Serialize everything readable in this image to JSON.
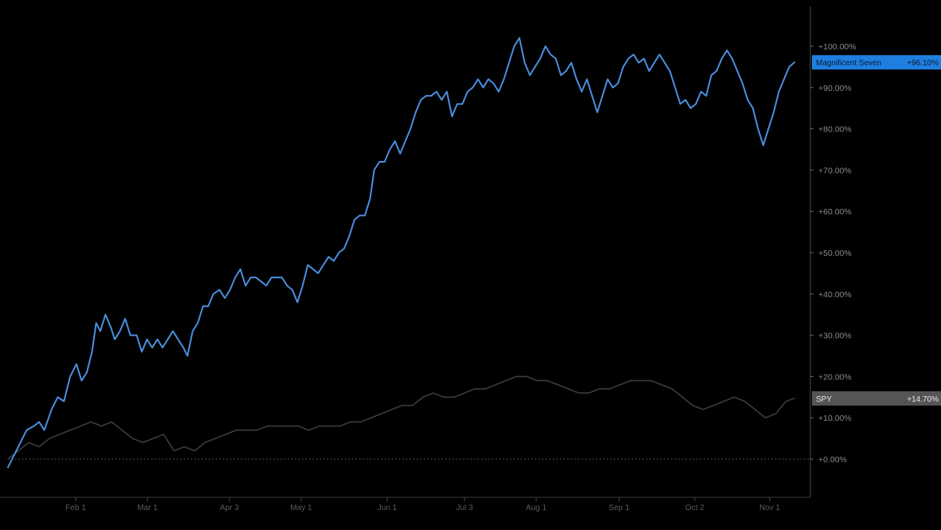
{
  "chart_data": {
    "type": "line",
    "title": "",
    "xlabel": "",
    "ylabel": "",
    "ylim": [
      -10,
      110
    ],
    "y_ticks": [
      "+0.00%",
      "+10.00%",
      "+20.00%",
      "+30.00%",
      "+40.00%",
      "+50.00%",
      "+60.00%",
      "+70.00%",
      "+80.00%",
      "+90.00%",
      "+100.00%"
    ],
    "x_ticks": [
      "Feb 1",
      "Mar 1",
      "Apr 3",
      "May 1",
      "Jun 1",
      "Jul 3",
      "Aug 1",
      "Sep 1",
      "Oct 2",
      "Nov 1"
    ],
    "grid": false,
    "zero_line": "dotted",
    "series": [
      {
        "name": "Magnificent Seven",
        "color": "#4a8fe0",
        "last_value_label": "+96.10%",
        "points": [
          [
            0.0,
            -2
          ],
          [
            0.6,
            1
          ],
          [
            1.2,
            4
          ],
          [
            1.8,
            7
          ],
          [
            2.5,
            8
          ],
          [
            3.0,
            9
          ],
          [
            3.5,
            7
          ],
          [
            4.2,
            12
          ],
          [
            4.8,
            15
          ],
          [
            5.4,
            14
          ],
          [
            6.0,
            20
          ],
          [
            6.6,
            23
          ],
          [
            7.1,
            19
          ],
          [
            7.6,
            21
          ],
          [
            8.1,
            26
          ],
          [
            8.5,
            33
          ],
          [
            8.9,
            31
          ],
          [
            9.4,
            35
          ],
          [
            9.9,
            32
          ],
          [
            10.3,
            29
          ],
          [
            10.8,
            31
          ],
          [
            11.3,
            34
          ],
          [
            11.8,
            30
          ],
          [
            12.4,
            30
          ],
          [
            12.9,
            26
          ],
          [
            13.4,
            29
          ],
          [
            13.9,
            27
          ],
          [
            14.4,
            29
          ],
          [
            14.9,
            27
          ],
          [
            15.4,
            29
          ],
          [
            15.9,
            31
          ],
          [
            16.4,
            29
          ],
          [
            16.9,
            27
          ],
          [
            17.3,
            25
          ],
          [
            17.8,
            31
          ],
          [
            18.3,
            33
          ],
          [
            18.8,
            37
          ],
          [
            19.3,
            37
          ],
          [
            19.8,
            40
          ],
          [
            20.4,
            41
          ],
          [
            20.9,
            39
          ],
          [
            21.4,
            41
          ],
          [
            21.9,
            44
          ],
          [
            22.4,
            46
          ],
          [
            22.9,
            42
          ],
          [
            23.4,
            44
          ],
          [
            23.9,
            44
          ],
          [
            24.4,
            43
          ],
          [
            24.9,
            42
          ],
          [
            25.4,
            44
          ],
          [
            25.9,
            44
          ],
          [
            26.4,
            44
          ],
          [
            26.9,
            42
          ],
          [
            27.4,
            41
          ],
          [
            27.9,
            38
          ],
          [
            28.4,
            42
          ],
          [
            28.9,
            47
          ],
          [
            29.4,
            46
          ],
          [
            29.9,
            45
          ],
          [
            30.4,
            47
          ],
          [
            30.9,
            49
          ],
          [
            31.4,
            48
          ],
          [
            31.9,
            50
          ],
          [
            32.4,
            51
          ],
          [
            32.9,
            54
          ],
          [
            33.4,
            58
          ],
          [
            33.9,
            59
          ],
          [
            34.4,
            59
          ],
          [
            34.9,
            63
          ],
          [
            35.3,
            70
          ],
          [
            35.8,
            72
          ],
          [
            36.3,
            72
          ],
          [
            36.8,
            75
          ],
          [
            37.3,
            77
          ],
          [
            37.8,
            74
          ],
          [
            38.3,
            77
          ],
          [
            38.8,
            80
          ],
          [
            39.3,
            84
          ],
          [
            39.8,
            87
          ],
          [
            40.3,
            88
          ],
          [
            40.8,
            88
          ],
          [
            41.3,
            89
          ],
          [
            41.8,
            87
          ],
          [
            42.3,
            89
          ],
          [
            42.8,
            83
          ],
          [
            43.3,
            86
          ],
          [
            43.8,
            86
          ],
          [
            44.3,
            89
          ],
          [
            44.8,
            90
          ],
          [
            45.3,
            92
          ],
          [
            45.8,
            90
          ],
          [
            46.3,
            92
          ],
          [
            46.8,
            91
          ],
          [
            47.3,
            89
          ],
          [
            47.8,
            92
          ],
          [
            48.3,
            96
          ],
          [
            48.8,
            100
          ],
          [
            49.3,
            102
          ],
          [
            49.8,
            96
          ],
          [
            50.3,
            93
          ],
          [
            50.8,
            95
          ],
          [
            51.3,
            97
          ],
          [
            51.8,
            100
          ],
          [
            52.3,
            98
          ],
          [
            52.8,
            97
          ],
          [
            53.3,
            93
          ],
          [
            53.8,
            94
          ],
          [
            54.3,
            96
          ],
          [
            54.8,
            92
          ],
          [
            55.3,
            89
          ],
          [
            55.8,
            92
          ],
          [
            56.3,
            88
          ],
          [
            56.8,
            84
          ],
          [
            57.3,
            88
          ],
          [
            57.8,
            92
          ],
          [
            58.3,
            90
          ],
          [
            58.8,
            91
          ],
          [
            59.3,
            95
          ],
          [
            59.8,
            97
          ],
          [
            60.3,
            98
          ],
          [
            60.8,
            96
          ],
          [
            61.3,
            97
          ],
          [
            61.8,
            94
          ],
          [
            62.3,
            96
          ],
          [
            62.8,
            98
          ],
          [
            63.3,
            96
          ],
          [
            63.8,
            94
          ],
          [
            64.3,
            90
          ],
          [
            64.8,
            86
          ],
          [
            65.3,
            87
          ],
          [
            65.8,
            85
          ],
          [
            66.3,
            86
          ],
          [
            66.8,
            89
          ],
          [
            67.3,
            88
          ],
          [
            67.8,
            93
          ],
          [
            68.3,
            94
          ],
          [
            68.8,
            97
          ],
          [
            69.3,
            99
          ],
          [
            69.8,
            97
          ],
          [
            70.3,
            94
          ],
          [
            70.8,
            91
          ],
          [
            71.3,
            87
          ],
          [
            71.8,
            85
          ],
          [
            72.3,
            80
          ],
          [
            72.8,
            76
          ],
          [
            73.3,
            80
          ],
          [
            73.8,
            84
          ],
          [
            74.3,
            89
          ],
          [
            74.8,
            92
          ],
          [
            75.3,
            95
          ],
          [
            75.8,
            96.1
          ]
        ]
      },
      {
        "name": "SPY",
        "color": "#3c3c3c",
        "last_value_label": "+14.70%",
        "points": [
          [
            0.0,
            0
          ],
          [
            1.0,
            2
          ],
          [
            2.0,
            4
          ],
          [
            3.0,
            3
          ],
          [
            4.0,
            5
          ],
          [
            5.0,
            6
          ],
          [
            6.0,
            7
          ],
          [
            7.0,
            8
          ],
          [
            8.0,
            9
          ],
          [
            9.0,
            8
          ],
          [
            10.0,
            9
          ],
          [
            11.0,
            7
          ],
          [
            12.0,
            5
          ],
          [
            13.0,
            4
          ],
          [
            14.0,
            5
          ],
          [
            15.0,
            6
          ],
          [
            16.0,
            2
          ],
          [
            17.0,
            3
          ],
          [
            18.0,
            2
          ],
          [
            19.0,
            4
          ],
          [
            20.0,
            5
          ],
          [
            21.0,
            6
          ],
          [
            22.0,
            7
          ],
          [
            23.0,
            7
          ],
          [
            24.0,
            7
          ],
          [
            25.0,
            8
          ],
          [
            26.0,
            8
          ],
          [
            27.0,
            8
          ],
          [
            28.0,
            8
          ],
          [
            29.0,
            7
          ],
          [
            30.0,
            8
          ],
          [
            31.0,
            8
          ],
          [
            32.0,
            8
          ],
          [
            33.0,
            9
          ],
          [
            34.0,
            9
          ],
          [
            35.0,
            10
          ],
          [
            36.0,
            11
          ],
          [
            37.0,
            12
          ],
          [
            38.0,
            13
          ],
          [
            39.0,
            13
          ],
          [
            40.0,
            15
          ],
          [
            41.0,
            16
          ],
          [
            42.0,
            15
          ],
          [
            43.0,
            15
          ],
          [
            44.0,
            16
          ],
          [
            45.0,
            17
          ],
          [
            46.0,
            17
          ],
          [
            47.0,
            18
          ],
          [
            48.0,
            19
          ],
          [
            49.0,
            20
          ],
          [
            50.0,
            20
          ],
          [
            51.0,
            19
          ],
          [
            52.0,
            19
          ],
          [
            53.0,
            18
          ],
          [
            54.0,
            17
          ],
          [
            55.0,
            16
          ],
          [
            56.0,
            16
          ],
          [
            57.0,
            17
          ],
          [
            58.0,
            17
          ],
          [
            59.0,
            18
          ],
          [
            60.0,
            19
          ],
          [
            61.0,
            19
          ],
          [
            62.0,
            19
          ],
          [
            63.0,
            18
          ],
          [
            64.0,
            17
          ],
          [
            65.0,
            15
          ],
          [
            66.0,
            13
          ],
          [
            67.0,
            12
          ],
          [
            68.0,
            13
          ],
          [
            69.0,
            14
          ],
          [
            70.0,
            15
          ],
          [
            71.0,
            14
          ],
          [
            72.0,
            12
          ],
          [
            73.0,
            10
          ],
          [
            74.0,
            11
          ],
          [
            75.0,
            14
          ],
          [
            75.8,
            14.7
          ]
        ]
      }
    ]
  }
}
